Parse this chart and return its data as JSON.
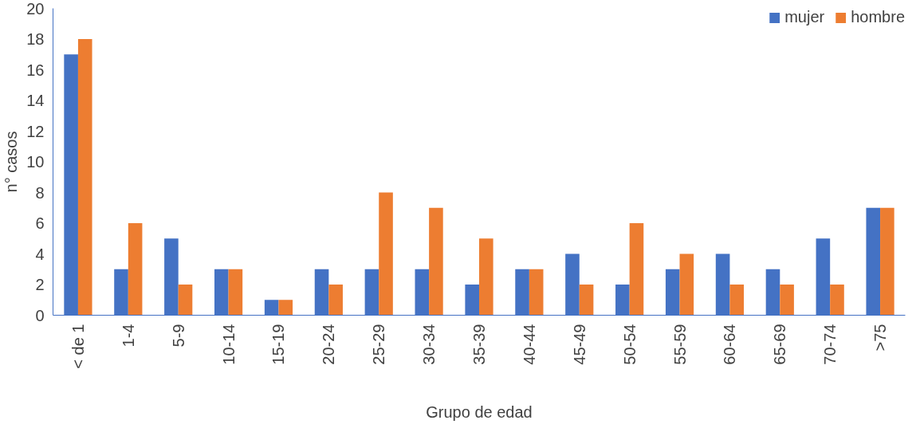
{
  "chart_data": {
    "type": "bar",
    "xlabel": "Grupo de edad",
    "ylabel": "n° casos",
    "categories": [
      "< de 1",
      "1-4",
      "5-9",
      "10-14",
      "15-19",
      "20-24",
      "25-29",
      "30-34",
      "35-39",
      "40-44",
      "45-49",
      "50-54",
      "55-59",
      "60-64",
      "65-69",
      "70-74",
      ">75"
    ],
    "series": [
      {
        "name": "mujer",
        "color": "#4472c4",
        "values": [
          17,
          3,
          5,
          3,
          1,
          3,
          3,
          3,
          2,
          3,
          4,
          2,
          3,
          4,
          3,
          5,
          7
        ]
      },
      {
        "name": "hombre",
        "color": "#ed7d31",
        "values": [
          18,
          6,
          2,
          3,
          1,
          2,
          8,
          7,
          5,
          3,
          2,
          6,
          4,
          2,
          2,
          2,
          7
        ]
      }
    ],
    "ylim": [
      0,
      20
    ],
    "yticks": [
      0,
      2,
      4,
      6,
      8,
      10,
      12,
      14,
      16,
      18,
      20
    ],
    "grid": false,
    "legend": "top right"
  }
}
